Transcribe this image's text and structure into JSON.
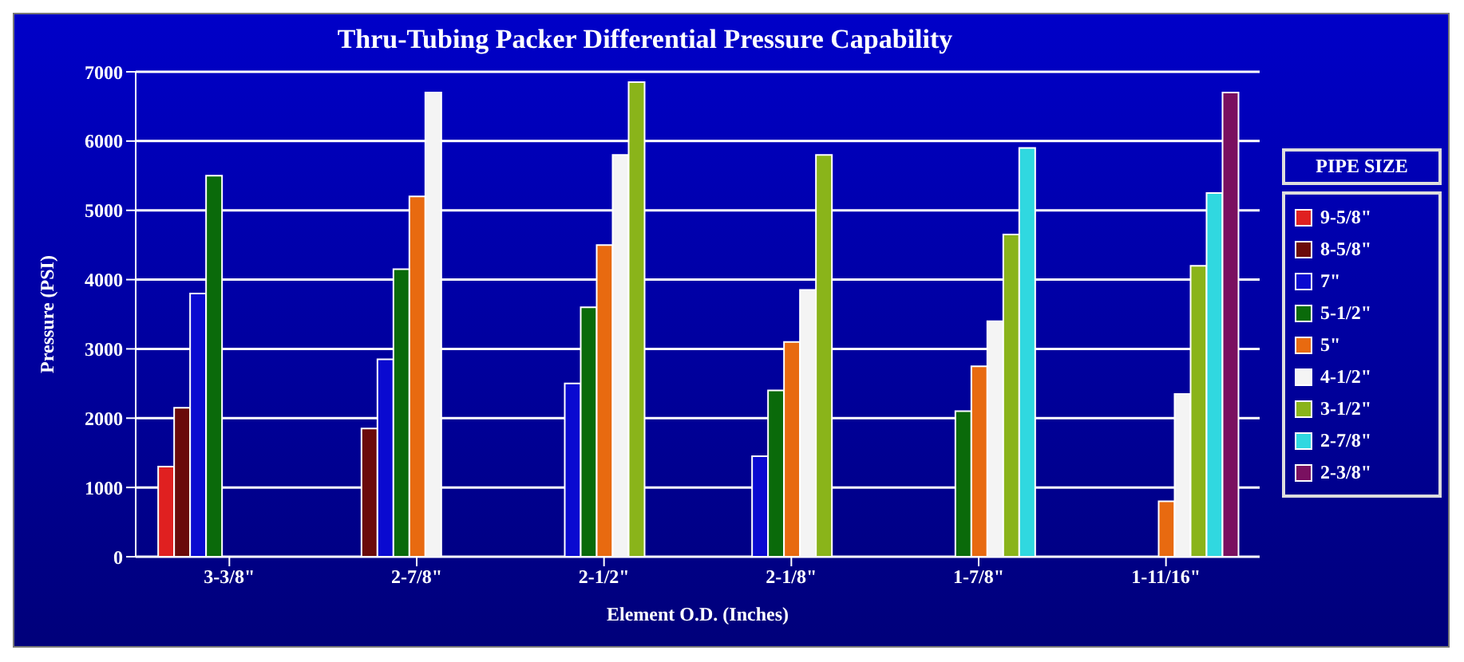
{
  "chart_data": {
    "type": "bar",
    "title": "Thru-Tubing Packer Differential Pressure Capability",
    "xlabel": "Element O.D. (Inches)",
    "ylabel": "Pressure (PSI)",
    "legend_title": "PIPE SIZE",
    "legend": "right",
    "grid": "y",
    "categories": [
      "3-3/8\"",
      "2-7/8\"",
      "2-1/2\"",
      "2-1/8\"",
      "1-7/8\"",
      "1-11/16\""
    ],
    "ylim": [
      0,
      7000
    ],
    "yticks": [
      0,
      1000,
      2000,
      3000,
      4000,
      5000,
      6000,
      7000
    ],
    "series": [
      {
        "name": "9-5/8\"",
        "color": "#e02020",
        "values": [
          1300,
          null,
          null,
          null,
          null,
          null
        ]
      },
      {
        "name": "8-5/8\"",
        "color": "#6a0a0a",
        "values": [
          2150,
          1850,
          null,
          null,
          null,
          null
        ]
      },
      {
        "name": "7\"",
        "color": "#0a0ad0",
        "values": [
          3800,
          2850,
          2500,
          1450,
          null,
          null
        ]
      },
      {
        "name": "5-1/2\"",
        "color": "#0a6a0a",
        "values": [
          5500,
          4150,
          3600,
          2400,
          2100,
          null
        ]
      },
      {
        "name": "5\"",
        "color": "#e86a10",
        "values": [
          null,
          5200,
          4500,
          3100,
          2750,
          800
        ]
      },
      {
        "name": "4-1/2\"",
        "color": "#f4f4f4",
        "values": [
          null,
          6700,
          5800,
          3850,
          3400,
          2350
        ]
      },
      {
        "name": "3-1/2\"",
        "color": "#8ab41a",
        "values": [
          null,
          null,
          6850,
          5800,
          4650,
          4200
        ]
      },
      {
        "name": "2-7/8\"",
        "color": "#30d8e0",
        "values": [
          null,
          null,
          null,
          null,
          5900,
          5250
        ]
      },
      {
        "name": "2-3/8\"",
        "color": "#7a1060",
        "values": [
          null,
          null,
          null,
          null,
          null,
          6700
        ]
      }
    ]
  }
}
